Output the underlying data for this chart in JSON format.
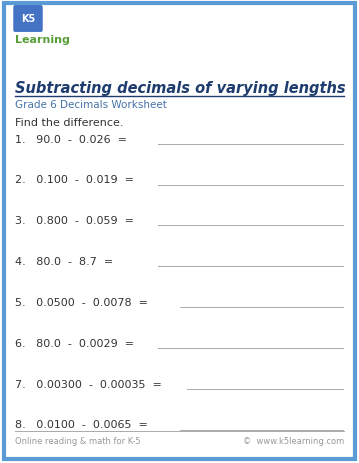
{
  "title": "Subtracting decimals of varying lengths",
  "subtitle": "Grade 6 Decimals Worksheet",
  "instruction": "Find the difference.",
  "problems": [
    {
      "num": "1.",
      "expr": "90.0  -  0.026  ="
    },
    {
      "num": "2.",
      "expr": "0.100  -  0.019  ="
    },
    {
      "num": "3.",
      "expr": "0.800  -  0.059  ="
    },
    {
      "num": "4.",
      "expr": "80.0  -  8.7  ="
    },
    {
      "num": "5.",
      "expr": "0.0500  -  0.0078  ="
    },
    {
      "num": "6.",
      "expr": "80.0  -  0.0029  ="
    },
    {
      "num": "7.",
      "expr": "0.00300  -  0.00035  ="
    },
    {
      "num": "8.",
      "expr": "0.0100  -  0.0065  ="
    }
  ],
  "line_starts": [
    0.44,
    0.44,
    0.44,
    0.44,
    0.5,
    0.44,
    0.52,
    0.5
  ],
  "footer_left": "Online reading & math for K-5",
  "footer_right": "©  www.k5learning.com",
  "border_color": "#5b9bd5",
  "title_color": "#1f3c6e",
  "subtitle_color": "#4472a8",
  "text_color": "#333333",
  "line_color": "#aaaaaa",
  "footer_color": "#999999",
  "bg_color": "#ffffff",
  "logo_k5_color": "#ffffff",
  "logo_bg_color": "#4472c4",
  "logo_learning_color": "#5a9e3a"
}
